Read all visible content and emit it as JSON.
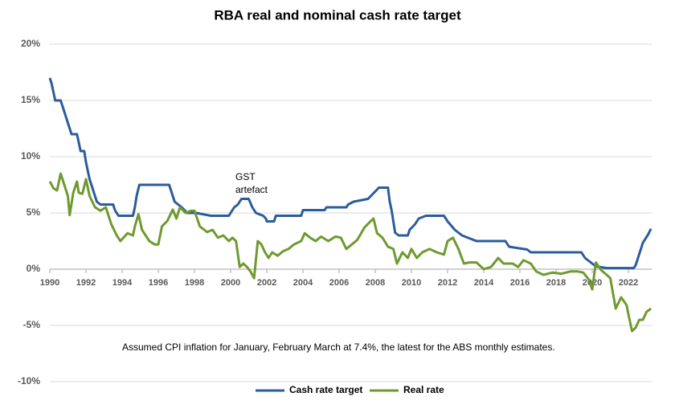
{
  "chart_data": {
    "type": "line",
    "title": "RBA real and nominal cash rate target",
    "xlim": [
      1990,
      2023.3
    ],
    "xticks": [
      1990,
      1992,
      1994,
      1996,
      1998,
      2000,
      2002,
      2004,
      2006,
      2008,
      2010,
      2012,
      2014,
      2016,
      2018,
      2020,
      2022
    ],
    "ylim": [
      -10,
      20
    ],
    "yticks": [
      {
        "value": -10,
        "label": "-10%"
      },
      {
        "value": -5,
        "label": "-5%"
      },
      {
        "value": 0,
        "label": "0%"
      },
      {
        "value": 5,
        "label": "5%"
      },
      {
        "value": 10,
        "label": "10%"
      },
      {
        "value": 15,
        "label": "15%"
      },
      {
        "value": 20,
        "label": "20%"
      }
    ],
    "grid": true,
    "legend": "bottom",
    "annotations": [
      "GST artefact",
      "Assumed CPI inflation for January, February March at 7.4%, the latest for the ABS monthly estimates."
    ],
    "series": [
      {
        "name": "Cash rate target",
        "color": "#2b5c9b",
        "x": [
          1990.0,
          1990.1,
          1990.3,
          1990.6,
          1990.8,
          1991.0,
          1991.2,
          1991.5,
          1991.7,
          1991.9,
          1992.0,
          1992.2,
          1992.4,
          1992.6,
          1992.8,
          1993.5,
          1993.6,
          1993.8,
          1994.6,
          1994.7,
          1994.8,
          1994.95,
          1996.6,
          1996.7,
          1996.9,
          1997.3,
          1997.6,
          1997.9,
          1998.1,
          1998.9,
          1999.9,
          2000.0,
          2000.2,
          2000.4,
          2000.6,
          2001.0,
          2001.2,
          2001.4,
          2001.8,
          2001.95,
          2002.0,
          2002.4,
          2002.5,
          2003.9,
          2004.0,
          2005.2,
          2005.3,
          2006.4,
          2006.5,
          2006.8,
          2007.6,
          2007.9,
          2008.2,
          2008.7,
          2008.8,
          2008.9,
          2009.0,
          2009.1,
          2009.3,
          2009.8,
          2009.9,
          2010.2,
          2010.4,
          2010.8,
          2011.8,
          2011.9,
          2012.0,
          2012.4,
          2012.8,
          2013.2,
          2013.6,
          2015.2,
          2015.4,
          2016.4,
          2016.6,
          2019.4,
          2019.6,
          2019.8,
          2020.2,
          2020.8,
          2022.3,
          2022.4,
          2022.5,
          2022.6,
          2022.7,
          2022.8,
          2022.9,
          2023.0,
          2023.1,
          2023.25
        ],
        "values": [
          17,
          16.5,
          15,
          15,
          14,
          13,
          12,
          12,
          10.5,
          10.5,
          9.5,
          8,
          7,
          6,
          5.75,
          5.75,
          5.25,
          4.75,
          4.75,
          5.5,
          6.5,
          7.5,
          7.5,
          7.0,
          6.0,
          5.5,
          5.0,
          5.0,
          5.0,
          4.75,
          4.75,
          5.0,
          5.5,
          5.75,
          6.25,
          6.25,
          5.5,
          5.0,
          4.75,
          4.5,
          4.25,
          4.25,
          4.75,
          4.75,
          5.25,
          5.25,
          5.5,
          5.5,
          5.75,
          6.0,
          6.25,
          6.75,
          7.25,
          7.25,
          6.0,
          5.25,
          4.25,
          3.25,
          3.0,
          3.0,
          3.5,
          4.0,
          4.5,
          4.75,
          4.75,
          4.5,
          4.25,
          3.5,
          3.0,
          2.75,
          2.5,
          2.5,
          2.0,
          1.75,
          1.5,
          1.5,
          1.0,
          0.75,
          0.25,
          0.1,
          0.1,
          0.35,
          0.85,
          1.35,
          1.85,
          2.35,
          2.6,
          2.85,
          3.1,
          3.6
        ]
      },
      {
        "name": "Real rate",
        "color": "#6f9a2f",
        "x": [
          1990.0,
          1990.2,
          1990.4,
          1990.6,
          1990.8,
          1991.0,
          1991.1,
          1991.3,
          1991.5,
          1991.6,
          1991.8,
          1992.0,
          1992.2,
          1992.5,
          1992.8,
          1993.1,
          1993.4,
          1993.7,
          1993.9,
          1994.3,
          1994.6,
          1994.7,
          1994.9,
          1995.1,
          1995.5,
          1995.8,
          1996.0,
          1996.2,
          1996.5,
          1996.8,
          1997.0,
          1997.2,
          1997.5,
          1997.8,
          1998.0,
          1998.3,
          1998.7,
          1999.0,
          1999.3,
          1999.6,
          1999.9,
          2000.1,
          2000.3,
          2000.5,
          2000.7,
          2000.9,
          2001.1,
          2001.3,
          2001.5,
          2001.7,
          2001.9,
          2002.1,
          2002.3,
          2002.6,
          2002.9,
          2003.2,
          2003.5,
          2003.9,
          2004.1,
          2004.4,
          2004.7,
          2005.0,
          2005.4,
          2005.8,
          2006.1,
          2006.4,
          2006.7,
          2007.0,
          2007.4,
          2007.7,
          2007.9,
          2008.1,
          2008.4,
          2008.7,
          2009.0,
          2009.2,
          2009.5,
          2009.8,
          2010.0,
          2010.3,
          2010.6,
          2011.0,
          2011.4,
          2011.8,
          2012.0,
          2012.3,
          2012.6,
          2012.9,
          2013.2,
          2013.6,
          2014.0,
          2014.4,
          2014.8,
          2015.1,
          2015.6,
          2015.9,
          2016.2,
          2016.6,
          2016.9,
          2017.3,
          2017.8,
          2018.3,
          2018.8,
          2019.2,
          2019.5,
          2019.8,
          2020.0,
          2020.2,
          2020.5,
          2020.8,
          2021.0,
          2021.3,
          2021.6,
          2021.9,
          2022.0,
          2022.2,
          2022.4,
          2022.6,
          2022.8,
          2023.0,
          2023.25
        ],
        "values": [
          7.8,
          7.2,
          7.0,
          8.5,
          7.5,
          6.5,
          4.8,
          6.8,
          7.8,
          6.8,
          6.7,
          8.0,
          6.5,
          5.5,
          5.2,
          5.5,
          4.0,
          3.0,
          2.5,
          3.2,
          3.0,
          3.8,
          4.9,
          3.5,
          2.5,
          2.2,
          2.2,
          3.8,
          4.3,
          5.3,
          4.5,
          5.5,
          5.0,
          5.2,
          5.2,
          3.8,
          3.3,
          3.5,
          2.8,
          3.0,
          2.5,
          2.8,
          2.5,
          0.2,
          0.5,
          0.2,
          -0.2,
          -0.8,
          2.5,
          2.2,
          1.5,
          1.0,
          1.5,
          1.2,
          1.6,
          1.8,
          2.2,
          2.5,
          3.2,
          2.8,
          2.5,
          2.9,
          2.5,
          2.9,
          2.8,
          1.8,
          2.2,
          2.6,
          3.7,
          4.2,
          4.5,
          3.2,
          2.8,
          2.0,
          1.8,
          0.5,
          1.5,
          1.0,
          1.8,
          1.0,
          1.5,
          1.8,
          1.5,
          1.3,
          2.5,
          2.8,
          1.8,
          0.5,
          0.6,
          0.6,
          0.0,
          0.2,
          1.0,
          0.5,
          0.5,
          0.2,
          0.8,
          0.5,
          -0.2,
          -0.5,
          -0.3,
          -0.4,
          -0.2,
          -0.2,
          -0.3,
          -0.9,
          -1.8,
          0.6,
          -0.1,
          -0.5,
          -0.8,
          -3.5,
          -2.5,
          -3.2,
          -4.0,
          -5.5,
          -5.2,
          -4.5,
          -4.5,
          -3.8,
          -3.5
        ]
      }
    ]
  }
}
